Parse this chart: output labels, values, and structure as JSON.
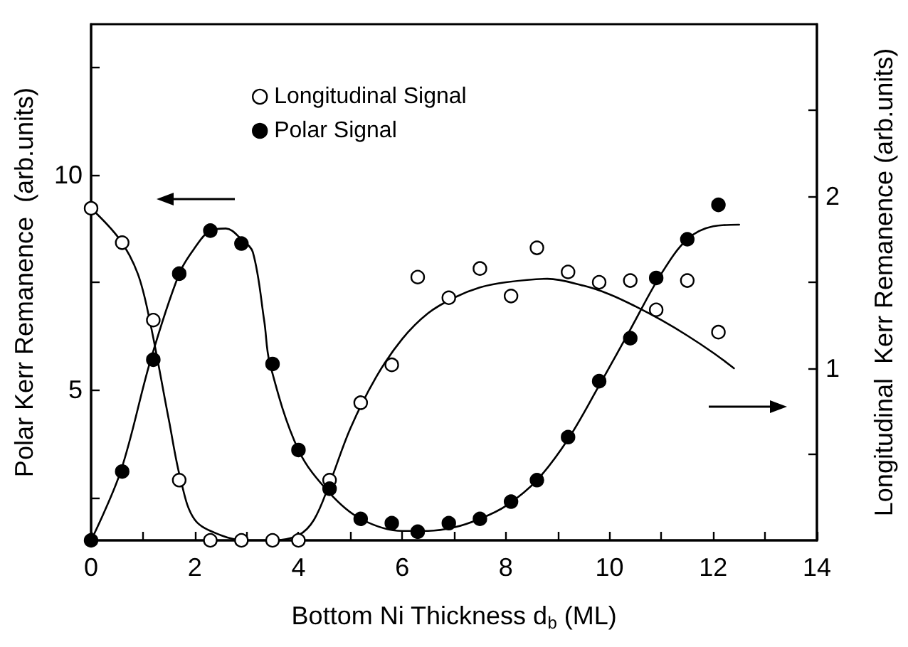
{
  "chart_data": {
    "type": "scatter",
    "xlabel": "Bottom Ni Thickness d$_{b}$ (ML)",
    "ylabel": "Polar Kerr Remanence  (arb.units)",
    "y2label": "Longitudinal  Kerr Remanence (arb.units)",
    "xlim": [
      0,
      14
    ],
    "xticks": [
      0,
      {
        "value": 1,
        "label": null
      },
      2,
      {
        "value": 3,
        "label": null
      },
      4,
      {
        "value": 5,
        "label": null
      },
      6,
      {
        "value": 7,
        "label": null
      },
      8,
      {
        "value": 9,
        "label": null
      },
      10,
      {
        "value": 11,
        "label": null
      },
      12,
      {
        "value": 13,
        "label": null
      },
      14
    ],
    "ylim": [
      1.5,
      13.5
    ],
    "yticks": [
      {
        "value": 2.5,
        "label": null
      },
      5,
      {
        "value": 7.5,
        "label": null
      },
      10,
      {
        "value": 12.5,
        "label": null
      }
    ],
    "y2lim": [
      0,
      3
    ],
    "y2ticks": [
      {
        "value": 0.5,
        "label": null
      },
      1,
      {
        "value": 1.5,
        "label": null
      },
      2,
      {
        "value": 2.5,
        "label": null
      }
    ],
    "grid": false,
    "legend": "top left",
    "marker": "circle",
    "series": [
      {
        "name": "Longitudinal Signal",
        "color": "#ffffff",
        "axis": "y2",
        "x": [
          0,
          0.6,
          1.2,
          1.7,
          2.3,
          2.9,
          3.5,
          4.0,
          4.6,
          5.2,
          5.8,
          6.3,
          6.9,
          7.5,
          8.1,
          8.6,
          9.2,
          9.8,
          10.4,
          10.9,
          11.5,
          12.1
        ],
        "values": [
          1.93,
          1.73,
          1.28,
          0.35,
          0.0,
          0.0,
          0.0,
          0.0,
          0.35,
          0.8,
          1.02,
          1.53,
          1.41,
          1.58,
          1.42,
          1.7,
          1.56,
          1.5,
          1.51,
          1.34,
          1.51,
          1.21
        ]
      },
      {
        "name": "Polar Signal",
        "color": "#000000",
        "x": [
          0,
          0.6,
          1.2,
          1.7,
          2.3,
          2.9,
          3.5,
          4.0,
          4.6,
          5.2,
          5.8,
          6.3,
          6.9,
          7.5,
          8.1,
          8.6,
          9.2,
          9.8,
          10.4,
          10.9,
          11.5,
          12.1
        ],
        "values": [
          1.5,
          3.1,
          5.7,
          7.7,
          8.7,
          8.4,
          5.6,
          3.6,
          2.7,
          2.0,
          1.9,
          1.7,
          1.9,
          2.0,
          2.4,
          2.9,
          3.9,
          5.2,
          6.2,
          7.6,
          8.5,
          9.3
        ]
      },
      {
        "type": "line",
        "color": "#000000",
        "axis": "y2",
        "marker": "none",
        "x": [
          0,
          0.55,
          0.9,
          1.13,
          1.5,
          1.73,
          2.0,
          2.5,
          3.0,
          3.5,
          4.0,
          4.3,
          4.6,
          5.0,
          5.5,
          6.0,
          6.5,
          7.0,
          7.5,
          8.0,
          8.8,
          9.5,
          10.0,
          10.5,
          11.0,
          11.5,
          12.0,
          12.4
        ],
        "values": [
          1.93,
          1.75,
          1.55,
          1.28,
          0.7,
          0.35,
          0.12,
          0.03,
          0.0,
          0.0,
          0.03,
          0.12,
          0.33,
          0.65,
          0.95,
          1.17,
          1.32,
          1.41,
          1.47,
          1.5,
          1.52,
          1.48,
          1.43,
          1.36,
          1.28,
          1.19,
          1.09,
          1.0
        ]
      },
      {
        "type": "line",
        "color": "#000000",
        "marker": "none",
        "x": [
          0,
          0.57,
          1.15,
          1.7,
          2.0,
          2.3,
          2.6,
          2.9,
          3.12,
          3.34,
          3.45,
          4.0,
          4.6,
          5.2,
          6.0,
          6.5,
          7.0,
          7.5,
          8.0,
          8.6,
          9.2,
          9.8,
          10.4,
          11.0,
          11.5,
          12.0,
          12.5
        ],
        "values": [
          1.5,
          3.1,
          5.7,
          7.7,
          8.3,
          8.7,
          8.75,
          8.5,
          8.2,
          6.6,
          5.6,
          3.6,
          2.6,
          2.0,
          1.72,
          1.72,
          1.8,
          2.0,
          2.3,
          2.9,
          3.85,
          5.1,
          6.4,
          7.7,
          8.5,
          8.8,
          8.84
        ]
      }
    ]
  }
}
